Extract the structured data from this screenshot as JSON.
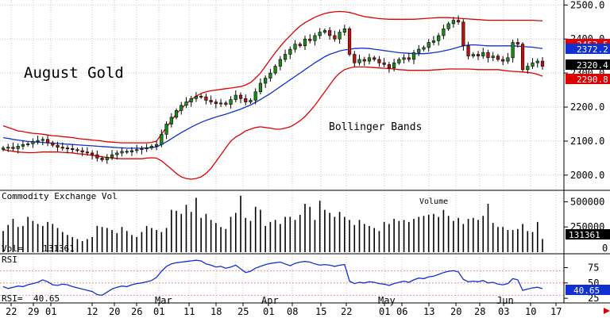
{
  "chart_data": [
    {
      "type": "candlestick",
      "title": "August Gold",
      "annotation": "Bollinger Bands",
      "ylim": [
        1960,
        2510
      ],
      "y_ticks": [
        "2000.0",
        "2100.0",
        "2200.0",
        "2300.0",
        "2400.0",
        "2500.0"
      ],
      "y_tick_values": [
        2000,
        2100,
        2200,
        2300,
        2400,
        2500
      ],
      "value_tags": [
        {
          "label": "2453.5",
          "value": 2453.5,
          "color": "#e00000"
        },
        {
          "label": "2372.2",
          "value": 2372.2,
          "color": "#1030d0"
        },
        {
          "label": "2320.4",
          "value": 2320.4,
          "color": "#000000"
        },
        {
          "label": "2290.8",
          "value": 2290.8,
          "color": "#e00000"
        }
      ],
      "close": [
        2080,
        2082,
        2078,
        2085,
        2090,
        2092,
        2098,
        2102,
        2105,
        2095,
        2088,
        2082,
        2080,
        2078,
        2075,
        2072,
        2068,
        2065,
        2060,
        2050,
        2045,
        2052,
        2060,
        2065,
        2070,
        2068,
        2072,
        2075,
        2078,
        2080,
        2085,
        2090,
        2120,
        2150,
        2170,
        2190,
        2205,
        2215,
        2225,
        2232,
        2230,
        2220,
        2215,
        2210,
        2212,
        2208,
        2222,
        2235,
        2225,
        2215,
        2220,
        2245,
        2270,
        2285,
        2300,
        2320,
        2340,
        2355,
        2370,
        2385,
        2380,
        2400,
        2395,
        2410,
        2420,
        2425,
        2410,
        2400,
        2420,
        2430,
        2355,
        2330,
        2340,
        2335,
        2345,
        2340,
        2330,
        2325,
        2315,
        2330,
        2340,
        2345,
        2340,
        2360,
        2370,
        2375,
        2390,
        2395,
        2410,
        2430,
        2445,
        2455,
        2450,
        2380,
        2350,
        2355,
        2350,
        2360,
        2345,
        2350,
        2340,
        2335,
        2345,
        2390,
        2385,
        2310,
        2320,
        2330,
        2335,
        2320
      ],
      "upper_band": [
        2145,
        2140,
        2135,
        2130,
        2128,
        2125,
        2123,
        2122,
        2120,
        2118,
        2116,
        2115,
        2113,
        2112,
        2110,
        2108,
        2106,
        2105,
        2103,
        2102,
        2100,
        2098,
        2097,
        2096,
        2095,
        2095,
        2095,
        2095,
        2095,
        2095,
        2096,
        2100,
        2120,
        2140,
        2160,
        2180,
        2195,
        2210,
        2222,
        2232,
        2240,
        2245,
        2248,
        2250,
        2252,
        2254,
        2256,
        2258,
        2260,
        2265,
        2272,
        2285,
        2300,
        2320,
        2340,
        2360,
        2378,
        2395,
        2410,
        2425,
        2438,
        2448,
        2456,
        2464,
        2470,
        2475,
        2478,
        2480,
        2481,
        2480,
        2478,
        2474,
        2470,
        2466,
        2464,
        2462,
        2460,
        2459,
        2458,
        2458,
        2458,
        2458,
        2458,
        2458,
        2459,
        2460,
        2461,
        2462,
        2463,
        2463,
        2463,
        2462,
        2461,
        2460,
        2459,
        2458,
        2457,
        2456,
        2455,
        2455,
        2455,
        2455,
        2455,
        2455,
        2455,
        2455,
        2455,
        2455,
        2454,
        2453.5
      ],
      "middle_band": [
        2110,
        2108,
        2105,
        2103,
        2101,
        2099,
        2098,
        2097,
        2096,
        2095,
        2094,
        2093,
        2092,
        2091,
        2090,
        2089,
        2088,
        2087,
        2086,
        2085,
        2084,
        2083,
        2082,
        2081,
        2080,
        2079,
        2079,
        2079,
        2079,
        2080,
        2081,
        2083,
        2090,
        2098,
        2107,
        2116,
        2125,
        2133,
        2141,
        2148,
        2155,
        2161,
        2166,
        2171,
        2175,
        2179,
        2184,
        2189,
        2194,
        2200,
        2206,
        2214,
        2222,
        2231,
        2240,
        2250,
        2260,
        2270,
        2280,
        2290,
        2300,
        2310,
        2320,
        2330,
        2339,
        2348,
        2355,
        2360,
        2365,
        2368,
        2370,
        2372,
        2373,
        2373,
        2372,
        2370,
        2368,
        2366,
        2364,
        2362,
        2360,
        2359,
        2358,
        2357,
        2357,
        2357,
        2358,
        2360,
        2362,
        2365,
        2368,
        2372,
        2376,
        2380,
        2382,
        2383,
        2382,
        2381,
        2380,
        2380,
        2380,
        2380,
        2380,
        2380,
        2379,
        2378,
        2377,
        2376,
        2374,
        2372.2
      ],
      "lower_band": [
        2075,
        2072,
        2070,
        2068,
        2067,
        2066,
        2066,
        2067,
        2068,
        2068,
        2068,
        2068,
        2067,
        2066,
        2065,
        2063,
        2062,
        2060,
        2058,
        2056,
        2054,
        2052,
        2050,
        2049,
        2048,
        2048,
        2048,
        2048,
        2048,
        2050,
        2051,
        2050,
        2042,
        2030,
        2018,
        2005,
        1995,
        1990,
        1988,
        1990,
        1995,
        2005,
        2020,
        2040,
        2060,
        2080,
        2100,
        2112,
        2120,
        2130,
        2135,
        2140,
        2142,
        2140,
        2138,
        2135,
        2135,
        2138,
        2142,
        2150,
        2160,
        2172,
        2188,
        2205,
        2225,
        2245,
        2265,
        2285,
        2300,
        2310,
        2315,
        2318,
        2318,
        2318,
        2317,
        2316,
        2315,
        2314,
        2313,
        2312,
        2310,
        2309,
        2308,
        2308,
        2308,
        2308,
        2308,
        2309,
        2310,
        2311,
        2312,
        2312,
        2312,
        2312,
        2312,
        2311,
        2310,
        2310,
        2310,
        2310,
        2310,
        2308,
        2306,
        2305,
        2304,
        2303,
        2302,
        2300,
        2296,
        2290.8
      ]
    },
    {
      "type": "bar",
      "title": "Commodity Exchange Vol",
      "annotation": "Volume",
      "ylim": [
        0,
        590000
      ],
      "y_ticks": [
        "250000",
        "500000"
      ],
      "y_tick_values": [
        250000,
        500000
      ],
      "legend_label": "Vol=",
      "legend_value": "131361",
      "value_tag": "131361",
      "values": [
        210000,
        270000,
        330000,
        250000,
        260000,
        350000,
        310000,
        280000,
        260000,
        300000,
        280000,
        240000,
        200000,
        170000,
        150000,
        130000,
        110000,
        130000,
        150000,
        260000,
        250000,
        240000,
        220000,
        190000,
        250000,
        210000,
        170000,
        150000,
        200000,
        260000,
        240000,
        220000,
        200000,
        240000,
        420000,
        410000,
        380000,
        470000,
        400000,
        540000,
        340000,
        380000,
        320000,
        290000,
        250000,
        230000,
        350000,
        390000,
        560000,
        340000,
        310000,
        450000,
        420000,
        260000,
        300000,
        320000,
        280000,
        350000,
        350000,
        320000,
        370000,
        480000,
        450000,
        320000,
        510000,
        420000,
        390000,
        350000,
        400000,
        350000,
        320000,
        270000,
        320000,
        280000,
        260000,
        240000,
        210000,
        300000,
        280000,
        330000,
        310000,
        320000,
        300000,
        330000,
        350000,
        360000,
        370000,
        380000,
        350000,
        420000,
        360000,
        310000,
        340000,
        280000,
        330000,
        340000,
        320000,
        360000,
        480000,
        290000,
        250000,
        250000,
        220000,
        220000,
        230000,
        280000,
        210000,
        200000,
        300000,
        131361
      ]
    },
    {
      "type": "line",
      "title": "RSI",
      "ylim": [
        20,
        95
      ],
      "y_ticks": [
        "25",
        "50",
        "75"
      ],
      "y_tick_values": [
        25,
        50,
        75
      ],
      "legend_label": "RSI=",
      "legend_value": "40.65",
      "value_tag": "40.65",
      "guide_lines": [
        70,
        50,
        30
      ],
      "values": [
        44,
        41,
        43,
        45,
        44,
        47,
        49,
        51,
        55,
        52,
        47,
        46,
        48,
        47,
        44,
        42,
        40,
        38,
        36,
        31,
        30,
        35,
        40,
        43,
        45,
        44,
        47,
        49,
        50,
        52,
        54,
        59,
        69,
        77,
        81,
        83,
        84,
        85,
        86,
        87,
        86,
        81,
        79,
        76,
        77,
        74,
        76,
        79,
        73,
        67,
        69,
        74,
        77,
        80,
        82,
        83,
        84,
        81,
        78,
        82,
        84,
        85,
        84,
        81,
        79,
        80,
        79,
        77,
        79,
        80,
        53,
        49,
        51,
        50,
        52,
        51,
        49,
        48,
        46,
        49,
        51,
        53,
        51,
        55,
        58,
        57,
        60,
        61,
        64,
        67,
        69,
        70,
        68,
        56,
        52,
        53,
        52,
        54,
        50,
        51,
        48,
        47,
        49,
        57,
        55,
        38,
        40,
        42,
        43,
        40.65
      ]
    }
  ],
  "x_axis": {
    "tick_labels": [
      "22",
      "29",
      "01",
      "12",
      "20",
      "26",
      "01",
      "11",
      "18",
      "25",
      "01",
      "08",
      "15",
      "22",
      "01",
      "06",
      "13",
      "20",
      "28",
      "03",
      "10",
      "17"
    ],
    "tick_positions": [
      14,
      42,
      64,
      116,
      144,
      172,
      200,
      238,
      272,
      306,
      338,
      368,
      404,
      436,
      484,
      506,
      540,
      574,
      604,
      634,
      668,
      700
    ],
    "month_labels": [
      "Mar",
      "Apr",
      "May",
      "Jun"
    ],
    "month_positions": [
      207,
      341,
      488,
      637
    ]
  }
}
